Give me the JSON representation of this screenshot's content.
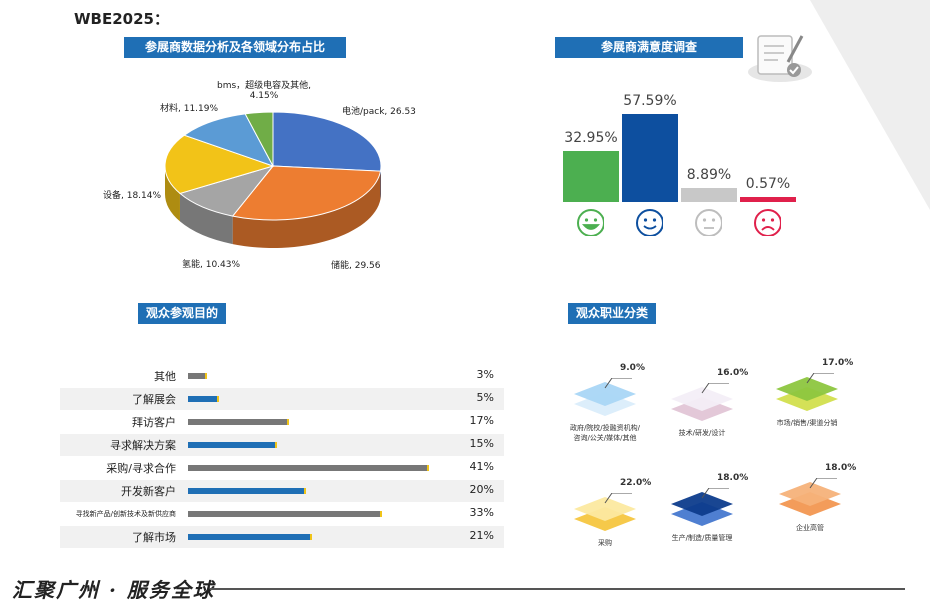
{
  "title": "WBE2025：",
  "sections": {
    "exhibitor": "参展商数据分析及各领域分布占比",
    "satisfaction": "参展商满意度调查",
    "purpose": "观众参观目的",
    "occupation": "观众职业分类"
  },
  "footer": "汇聚广州 · 服务全球",
  "colors": {
    "banner": "#1f6fb5",
    "very_satisfied": "#4caf50",
    "satisfied": "#0d4f9f",
    "neutral": "#c8c8c8",
    "unsatisfied": "#e0204b",
    "purpose_blue": "#1f6fb5",
    "purpose_gray": "#777777"
  },
  "chart_data": [
    {
      "type": "pie",
      "labels": [
        "电池/pack",
        "储能",
        "氢能",
        "设备",
        "材料",
        "bms，超级电容及其他"
      ],
      "values": [
        26.53,
        29.56,
        10.43,
        18.14,
        11.19,
        4.15
      ],
      "display_labels": [
        "电池/pack, 26.53",
        "储能, 29.56",
        "氢能, 10.43%",
        "设备, 18.14%",
        "材料, 11.19%",
        "bms，超级电容及其他,"
      ],
      "display_labels_line2": [
        "",
        "",
        "",
        "",
        "",
        "4.15%"
      ],
      "colors": [
        "#4472c4",
        "#ed7d31",
        "#a5a5a5",
        "#f2c318",
        "#5b9bd5",
        "#70ad47"
      ]
    },
    {
      "type": "bar",
      "categories": [
        "非常满意",
        "满意",
        "一般",
        "不满意"
      ],
      "values": [
        32.95,
        57.59,
        8.89,
        0.57
      ],
      "value_labels": [
        "32.95%",
        "57.59%",
        "8.89%",
        "0.57%"
      ],
      "face_icons": [
        "happy-face-icon",
        "smile-face-icon",
        "neutral-face-icon",
        "sad-face-icon"
      ],
      "ylim": [
        0,
        60
      ]
    },
    {
      "type": "bar",
      "orientation": "horizontal",
      "categories": [
        "其他",
        "了解展会",
        "拜访客户",
        "寻求解决方案",
        "采购/寻求合作",
        "开发新客户",
        "寻找新产品/创新技术及新供应商",
        "了解市场"
      ],
      "values": [
        3,
        5,
        17,
        15,
        41,
        20,
        33,
        21
      ],
      "value_labels": [
        "3%",
        "5%",
        "17%",
        "15%",
        "41%",
        "20%",
        "33%",
        "21%"
      ],
      "bar_colors": [
        "gray",
        "blue",
        "gray",
        "blue",
        "gray",
        "blue",
        "gray",
        "blue"
      ],
      "xlim": [
        0,
        45
      ]
    },
    {
      "type": "table",
      "items": [
        {
          "label_line1": "政府/院校/投融资机构/",
          "label_line2": "咨询/公关/媒体/其他",
          "value": "9.0%",
          "top": "#a9d6f5",
          "bottom": "#dceefb"
        },
        {
          "label_line1": "技术/研发/设计",
          "label_line2": "",
          "value": "16.0%",
          "top": "#f3eef7",
          "bottom": "#e3c8d8"
        },
        {
          "label_line1": "市场/销售/渠道分销",
          "label_line2": "",
          "value": "17.0%",
          "top": "#8dc63f",
          "bottom": "#d4e157"
        },
        {
          "label_line1": "采购",
          "label_line2": "",
          "value": "22.0%",
          "top": "#fce9a0",
          "bottom": "#f6c94a"
        },
        {
          "label_line1": "生产/制造/质量管理",
          "label_line2": "",
          "value": "18.0%",
          "top": "#0d3c8c",
          "bottom": "#4f7fd1"
        },
        {
          "label_line1": "企业高管",
          "label_line2": "",
          "value": "18.0%",
          "top": "#f6b27a",
          "bottom": "#f39c5a"
        }
      ]
    }
  ]
}
